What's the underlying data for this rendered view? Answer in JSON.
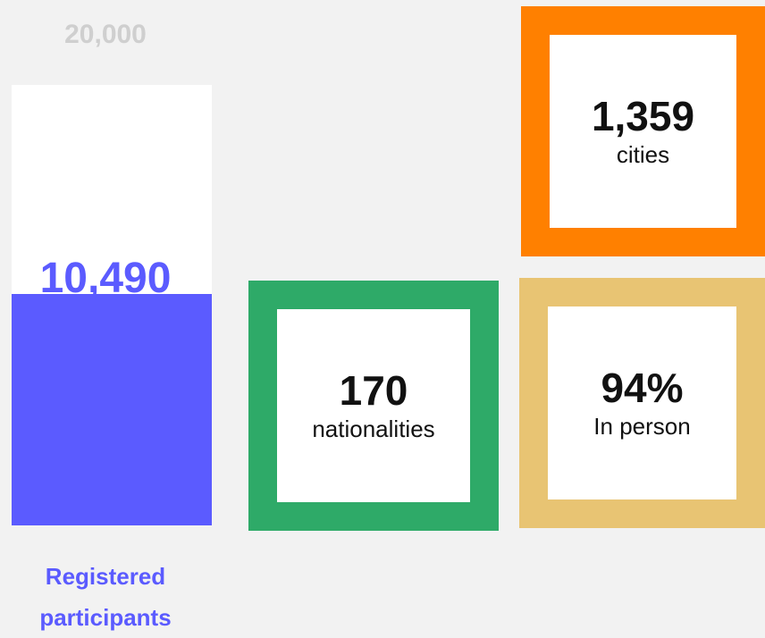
{
  "gauge": {
    "max": {
      "value": 20000,
      "label": "20,000"
    },
    "value": {
      "value": 10490,
      "label": "10,490"
    },
    "caption": "Registered participants"
  },
  "stats": [
    {
      "number": "1,359",
      "label": "cities",
      "color": "#ff8000"
    },
    {
      "number": "170",
      "label": "nationalities",
      "color": "#2eaa68"
    },
    {
      "number": "94%",
      "label": "In person",
      "color": "#e8c473"
    }
  ]
}
